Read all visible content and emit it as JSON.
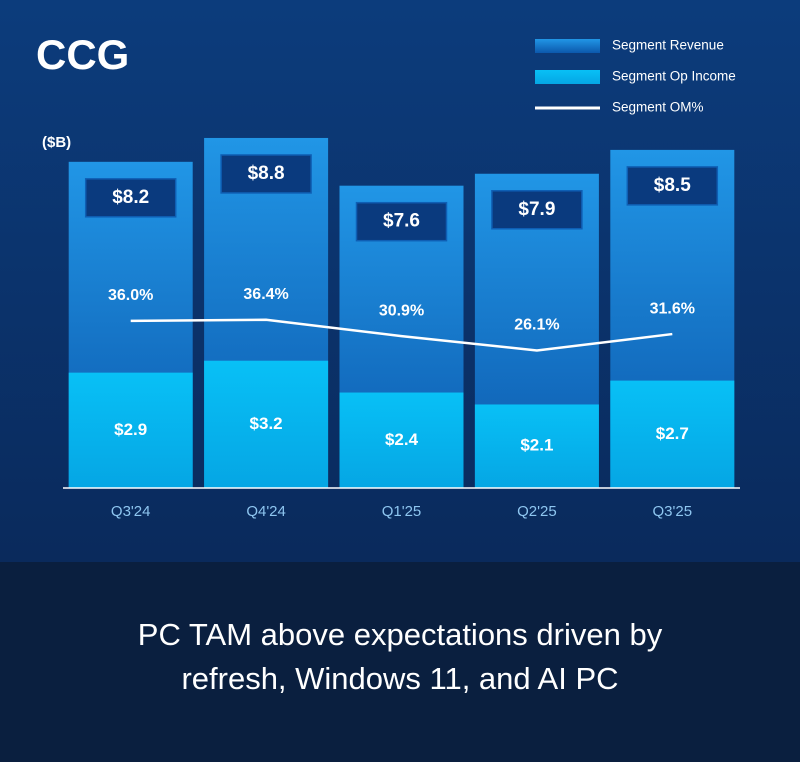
{
  "chart_data": {
    "type": "bar",
    "title": "CCG",
    "unit_label": "($B)",
    "categories": [
      "Q3'24",
      "Q4'24",
      "Q1'25",
      "Q2'25",
      "Q3'25"
    ],
    "series": [
      {
        "name": "Segment Revenue",
        "kind": "bar",
        "color": "#1a82d6",
        "values": [
          8.2,
          8.8,
          7.6,
          7.9,
          8.5
        ],
        "value_labels": [
          "$8.2",
          "$8.8",
          "$7.6",
          "$7.9",
          "$8.5"
        ]
      },
      {
        "name": "Segment Op Income",
        "kind": "bar",
        "color": "#08b8f0",
        "values": [
          2.9,
          3.2,
          2.4,
          2.1,
          2.7
        ],
        "value_labels": [
          "$2.9",
          "$3.2",
          "$2.4",
          "$2.1",
          "$2.7"
        ]
      },
      {
        "name": "Segment OM%",
        "kind": "line",
        "axis": "y2",
        "color": "#ffffff",
        "values": [
          36.0,
          36.4,
          30.9,
          26.1,
          31.6
        ],
        "value_labels": [
          "36.0%",
          "36.4%",
          "30.9%",
          "26.1%",
          "31.6%"
        ]
      }
    ],
    "ylim": [
      0,
      9
    ],
    "y2lim": [
      -20,
      100
    ],
    "legend": "upper right",
    "caption": [
      "PC TAM above expectations driven by",
      "refresh, Windows 11,  and AI PC"
    ]
  }
}
